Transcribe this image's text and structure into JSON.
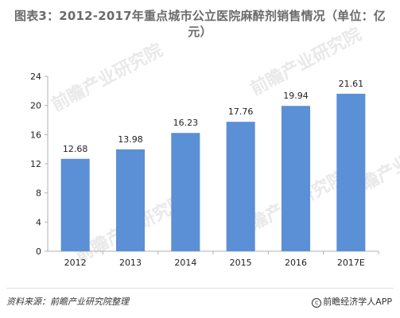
{
  "title": {
    "line1": "图表3：2012-2017年重点城市公立医院麻醉剂销售情况（单位：亿",
    "line2": "元）"
  },
  "footer": {
    "source": "资料来源：前瞻产业研究院整理",
    "copyright_symbol": "c",
    "brand": "前瞻经济学人APP"
  },
  "watermark": "前瞻产业研究院",
  "colors": {
    "bar": "#5b8fd6",
    "axis": "#b0b0b0"
  },
  "chart_data": {
    "type": "bar",
    "title": "图表3：2012-2017年重点城市公立医院麻醉剂销售情况（单位：亿元）",
    "xlabel": "",
    "ylabel": "",
    "categories": [
      "2012",
      "2013",
      "2014",
      "2015",
      "2016",
      "2017E"
    ],
    "values": [
      12.68,
      13.98,
      16.23,
      17.76,
      19.94,
      21.61
    ],
    "data_labels": [
      "12.68",
      "13.98",
      "16.23",
      "17.76",
      "19.94",
      "21.61"
    ],
    "ylim": [
      0,
      24
    ],
    "yticks": [
      0,
      4,
      8,
      12,
      16,
      20,
      24
    ],
    "grid": false,
    "legend": "none"
  }
}
